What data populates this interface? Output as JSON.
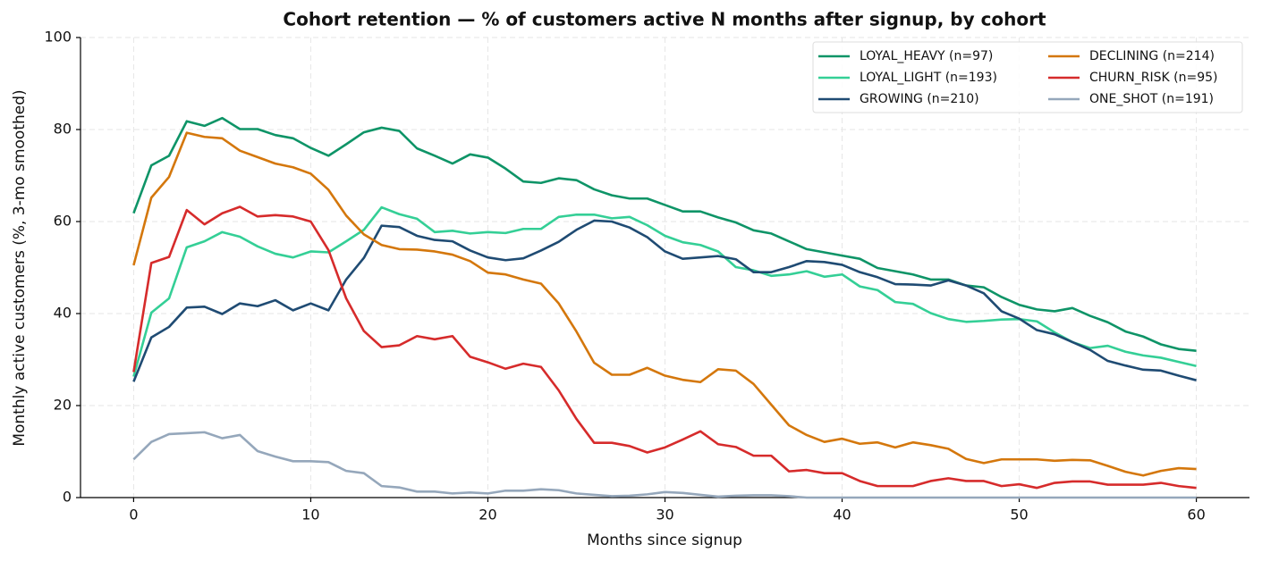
{
  "chart_data": {
    "type": "line",
    "title": "Cohort retention — % of customers active N months after signup, by cohort",
    "x_label": "Months since signup",
    "y_label": "Monthly active customers (%, 3-mo smoothed)",
    "x": [
      0,
      1,
      2,
      3,
      4,
      5,
      6,
      7,
      8,
      9,
      10,
      11,
      12,
      13,
      14,
      15,
      16,
      17,
      18,
      19,
      20,
      21,
      22,
      23,
      24,
      25,
      26,
      27,
      28,
      29,
      30,
      31,
      32,
      33,
      34,
      35,
      36,
      37,
      38,
      39,
      40,
      41,
      42,
      43,
      44,
      45,
      46,
      47,
      48,
      49,
      50,
      51,
      52,
      53,
      54,
      55,
      56,
      57,
      58,
      59,
      60
    ],
    "xlim": [
      -3,
      63
    ],
    "xticks": [
      0,
      10,
      20,
      30,
      40,
      50,
      60
    ],
    "ylim": [
      0,
      100
    ],
    "yticks": [
      0,
      20,
      40,
      60,
      80,
      100
    ],
    "grid": true,
    "legend": "upper right",
    "series": [
      {
        "name": "LOYAL_HEAVY (n=97)",
        "color": "#0e9467",
        "values": [
          61.8,
          72.2,
          74.3,
          81.8,
          80.8,
          82.5,
          80.1,
          80.1,
          78.8,
          78.1,
          76.0,
          74.3,
          76.8,
          79.4,
          80.4,
          79.7,
          75.9,
          74.3,
          72.6,
          74.6,
          73.9,
          71.5,
          68.7,
          68.4,
          69.4,
          69.0,
          67.0,
          65.7,
          65.0,
          65.0,
          63.6,
          62.2,
          62.2,
          60.9,
          59.8,
          58.1,
          57.4,
          55.7,
          54.0,
          53.3,
          52.6,
          51.9,
          49.9,
          49.2,
          48.5,
          47.4,
          47.4,
          46.1,
          45.7,
          43.6,
          41.9,
          40.9,
          40.5,
          41.2,
          39.5,
          38.1,
          36.1,
          35.0,
          33.3,
          32.3,
          31.9
        ]
      },
      {
        "name": "LOYAL_LIGHT (n=193)",
        "color": "#34cf96",
        "values": [
          26.3,
          40.2,
          43.3,
          54.4,
          55.7,
          57.7,
          56.7,
          54.6,
          53.0,
          52.2,
          53.5,
          53.3,
          55.7,
          58.2,
          63.1,
          61.6,
          60.6,
          57.7,
          58.0,
          57.4,
          57.7,
          57.5,
          58.4,
          58.4,
          61.0,
          61.5,
          61.5,
          60.7,
          61.0,
          59.2,
          56.9,
          55.5,
          54.9,
          53.5,
          50.1,
          49.4,
          48.2,
          48.5,
          49.2,
          48.0,
          48.5,
          45.9,
          45.1,
          42.5,
          42.1,
          40.1,
          38.8,
          38.2,
          38.4,
          38.7,
          38.8,
          38.3,
          35.9,
          33.8,
          32.5,
          33.0,
          31.7,
          30.9,
          30.4,
          29.5,
          28.6
        ]
      },
      {
        "name": "GROWING (n=210)",
        "color": "#1f4b73",
        "values": [
          25.2,
          34.8,
          37.1,
          41.3,
          41.5,
          39.9,
          42.2,
          41.6,
          42.9,
          40.7,
          42.2,
          40.7,
          47.4,
          52.1,
          59.1,
          58.8,
          56.9,
          56.0,
          55.7,
          53.7,
          52.2,
          51.6,
          52.0,
          53.7,
          55.6,
          58.2,
          60.2,
          60.0,
          58.7,
          56.6,
          53.5,
          51.9,
          52.2,
          52.5,
          51.8,
          49.0,
          49.0,
          50.1,
          51.4,
          51.2,
          50.6,
          49.0,
          47.9,
          46.4,
          46.3,
          46.1,
          47.2,
          46.1,
          44.4,
          40.5,
          38.9,
          36.4,
          35.5,
          33.8,
          32.1,
          29.7,
          28.7,
          27.8,
          27.6,
          26.5,
          25.5
        ]
      },
      {
        "name": "DECLINING (n=214)",
        "color": "#d4770c",
        "values": [
          50.5,
          65.2,
          69.7,
          79.3,
          78.4,
          78.1,
          75.4,
          74.0,
          72.6,
          71.8,
          70.4,
          66.9,
          61.3,
          57.2,
          54.9,
          54.0,
          53.9,
          53.5,
          52.8,
          51.4,
          48.9,
          48.5,
          47.4,
          46.5,
          42.2,
          36.1,
          29.3,
          26.7,
          26.7,
          28.2,
          26.5,
          25.6,
          25.1,
          27.9,
          27.6,
          24.7,
          20.2,
          15.7,
          13.6,
          12.1,
          12.8,
          11.7,
          12.0,
          10.9,
          12.0,
          11.4,
          10.6,
          8.4,
          7.5,
          8.3,
          8.3,
          8.3,
          8.0,
          8.2,
          8.1,
          6.9,
          5.6,
          4.8,
          5.8,
          6.4,
          6.2
        ]
      },
      {
        "name": "CHURN_RISK (n=95)",
        "color": "#d62b2b",
        "values": [
          27.3,
          51.0,
          52.3,
          62.5,
          59.4,
          61.8,
          63.2,
          61.1,
          61.4,
          61.1,
          60.0,
          53.8,
          43.3,
          36.2,
          32.7,
          33.1,
          35.1,
          34.4,
          35.1,
          30.6,
          29.4,
          28.0,
          29.1,
          28.4,
          23.3,
          17.1,
          11.9,
          11.9,
          11.2,
          9.8,
          10.9,
          12.6,
          14.4,
          11.6,
          11.0,
          9.1,
          9.1,
          5.7,
          6.0,
          5.3,
          5.3,
          3.6,
          2.5,
          2.5,
          2.5,
          3.6,
          4.2,
          3.6,
          3.6,
          2.5,
          2.9,
          2.1,
          3.2,
          3.5,
          3.5,
          2.8,
          2.8,
          2.8,
          3.2,
          2.5,
          2.1
        ]
      },
      {
        "name": "ONE_SHOT (n=191)",
        "color": "#95a7bb",
        "values": [
          8.3,
          12.1,
          13.8,
          14.0,
          14.2,
          12.9,
          13.6,
          10.1,
          8.9,
          7.9,
          7.9,
          7.7,
          5.8,
          5.3,
          2.5,
          2.2,
          1.3,
          1.3,
          0.9,
          1.1,
          0.9,
          1.5,
          1.5,
          1.8,
          1.6,
          0.9,
          0.6,
          0.3,
          0.4,
          0.7,
          1.2,
          1.0,
          0.6,
          0.2,
          0.4,
          0.5,
          0.5,
          0.3,
          0,
          0,
          0,
          0,
          0,
          0,
          0,
          0,
          0,
          0,
          0,
          0,
          0,
          0,
          0,
          0,
          0,
          0,
          0,
          0,
          0,
          0,
          0
        ]
      }
    ]
  }
}
